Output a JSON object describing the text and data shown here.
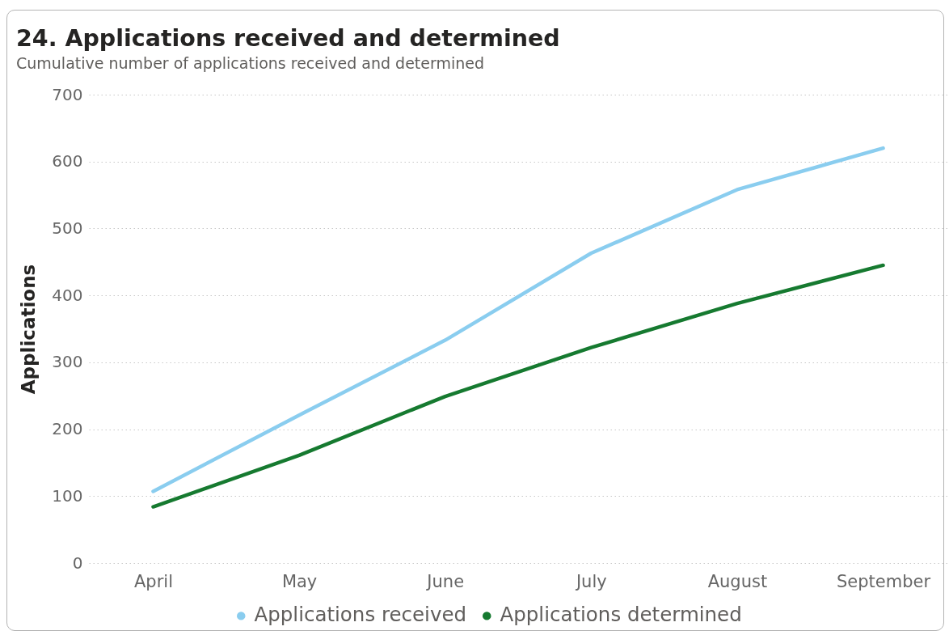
{
  "chart_data": {
    "type": "line",
    "title": "24. Applications received and determined",
    "subtitle": "Cumulative number of applications received and determined",
    "ylabel": "Applications",
    "categories": [
      "April",
      "May",
      "June",
      "July",
      "August",
      "September"
    ],
    "series": [
      {
        "name": "Applications received",
        "color": "#8acdef",
        "values": [
          107,
          221,
          333,
          463,
          558,
          620
        ]
      },
      {
        "name": "Applications determined",
        "color": "#167a30",
        "values": [
          84,
          161,
          249,
          322,
          388,
          445
        ]
      }
    ],
    "ylim": [
      0,
      700
    ],
    "yticks": [
      0,
      100,
      200,
      300,
      400,
      500,
      600,
      700
    ],
    "grid": "y",
    "legend": "bottom"
  }
}
